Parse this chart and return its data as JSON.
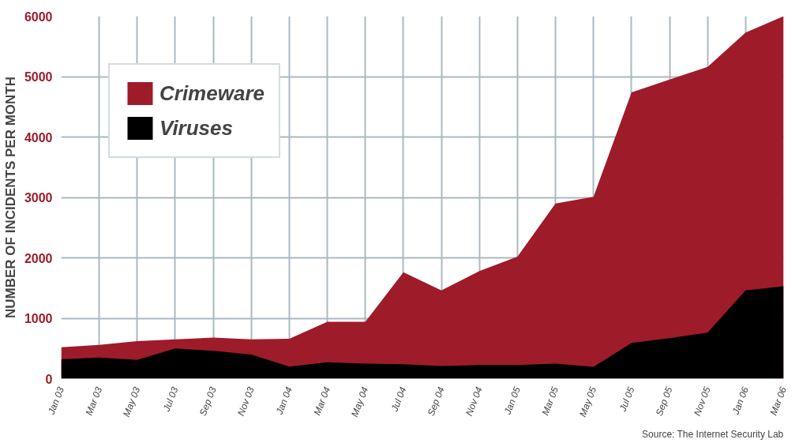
{
  "chart_data": {
    "type": "area",
    "ylabel": "NUMBER OF INCIDENTS PER MONTH",
    "categories": [
      "Jan 03",
      "Mar 03",
      "May 03",
      "Jul 03",
      "Sep 03",
      "Nov 03",
      "Jan 04",
      "Mar 04",
      "May 04",
      "Jul 04",
      "Sep 04",
      "Nov 04",
      "Jan 05",
      "Mar 05",
      "May 05",
      "Jul 05",
      "Sep 05",
      "Nov 05",
      "Jan 06",
      "Mar 06"
    ],
    "series": [
      {
        "name": "Crimeware",
        "color": "#9e1b2a",
        "values": [
          520,
          560,
          620,
          650,
          680,
          650,
          660,
          940,
          940,
          1760,
          1460,
          1780,
          2020,
          2900,
          3010,
          4740,
          4950,
          5160,
          5730,
          6000
        ]
      },
      {
        "name": "Viruses",
        "color": "#000000",
        "values": [
          320,
          350,
          310,
          500,
          460,
          400,
          200,
          270,
          250,
          240,
          210,
          225,
          225,
          250,
          195,
          590,
          670,
          760,
          1460,
          1530
        ]
      }
    ],
    "ylim": [
      0,
      6000
    ],
    "yticks": [
      0,
      1000,
      2000,
      3000,
      4000,
      5000,
      6000
    ],
    "grid": true,
    "legend": "top left",
    "annotations": [
      "Source: The Internet Security Lab"
    ]
  }
}
